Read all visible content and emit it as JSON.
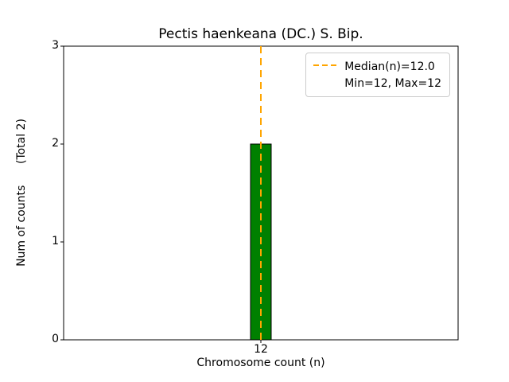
{
  "chart_data": {
    "type": "bar",
    "title": "Pectis haenkeana (DC.) S. Bip.",
    "xlabel": "Chromosome count (n)",
    "ylabel": "Num of counts      (Total 2)",
    "categories": [
      "12"
    ],
    "values": [
      2
    ],
    "total_counts": 2,
    "ylim": [
      0,
      3
    ],
    "yticks": [
      0,
      1,
      2,
      3
    ],
    "bar_color": "#008000",
    "bar_edge_color": "#000000",
    "median_line_color": "#ffa500",
    "median_value": 12.0,
    "min_value": 12,
    "max_value": 12,
    "grid": false,
    "legend_position": "upper right",
    "legend": [
      {
        "label": "Median(n)=12.0",
        "handle": "dashed-line",
        "color": "#ffa500"
      },
      {
        "label": "Min=12, Max=12",
        "handle": "none"
      }
    ]
  }
}
